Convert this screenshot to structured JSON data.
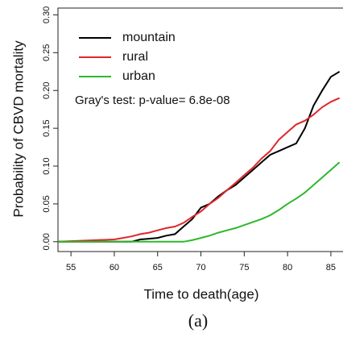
{
  "chart_data": {
    "type": "line",
    "y_label": "Probability of CBVD mortality",
    "x_label": "Time to death(age)",
    "caption": "(a)",
    "annotation": "Gray's test: p-value= 6.8e-08",
    "x": [
      53.5,
      60,
      61,
      62,
      63,
      64,
      65,
      66,
      67,
      68,
      69,
      70,
      71,
      72,
      73,
      74,
      75,
      76,
      77,
      78,
      79,
      80,
      81,
      82,
      83,
      84,
      85,
      86
    ],
    "series": [
      {
        "name": "mountain",
        "color": "#000000",
        "values": [
          0,
          0,
          0,
          0,
          0.003,
          0.004,
          0.005,
          0.008,
          0.01,
          0.02,
          0.03,
          0.045,
          0.05,
          0.06,
          0.068,
          0.075,
          0.085,
          0.095,
          0.105,
          0.115,
          0.12,
          0.125,
          0.13,
          0.15,
          0.18,
          0.2,
          0.218,
          0.225
        ]
      },
      {
        "name": "rural",
        "color": "#e0262b",
        "values": [
          0,
          0.003,
          0.005,
          0.007,
          0.01,
          0.012,
          0.015,
          0.018,
          0.02,
          0.025,
          0.033,
          0.04,
          0.05,
          0.058,
          0.068,
          0.078,
          0.088,
          0.098,
          0.11,
          0.12,
          0.135,
          0.145,
          0.155,
          0.16,
          0.168,
          0.178,
          0.185,
          0.19
        ]
      },
      {
        "name": "urban",
        "color": "#2db82d",
        "values": [
          0,
          0,
          0,
          0,
          0,
          0,
          0,
          0,
          0,
          0,
          0.002,
          0.005,
          0.008,
          0.012,
          0.015,
          0.018,
          0.022,
          0.026,
          0.03,
          0.035,
          0.042,
          0.05,
          0.057,
          0.065,
          0.075,
          0.085,
          0.095,
          0.105
        ]
      }
    ],
    "xlim": [
      53.5,
      86.4
    ],
    "ylim": [
      -0.013,
      0.309
    ],
    "xticks": [
      55,
      60,
      65,
      70,
      75,
      80,
      85
    ],
    "yticks": [
      {
        "value": 0,
        "label": "0.00"
      },
      {
        "value": 0.05,
        "label": "0.05"
      },
      {
        "value": 0.1,
        "label": "0.10"
      },
      {
        "value": 0.15,
        "label": "0.15"
      },
      {
        "value": 0.2,
        "label": "0.20"
      },
      {
        "value": 0.25,
        "label": "0.25"
      },
      {
        "value": 0.3,
        "label": "0.30"
      }
    ]
  }
}
